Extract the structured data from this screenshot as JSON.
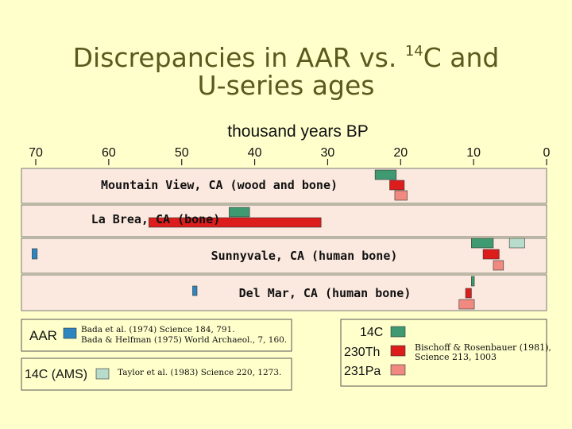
{
  "slide": {
    "title_part1": "Discrepancies in AAR vs. ",
    "title_sup": "14",
    "title_part2": "C and",
    "title_line2": "U-series ages"
  },
  "chart_data": {
    "type": "bar",
    "xlabel": "thousand years BP",
    "xlim": [
      70,
      0
    ],
    "xticks": [
      70,
      60,
      50,
      40,
      30,
      20,
      10,
      0
    ],
    "colors": {
      "AAR": "#2e86c1",
      "14C": "#3f9a72",
      "230Th": "#dd1c1c",
      "231Pa": "#f08a80",
      "14C (AMS)": "#b7dccb"
    },
    "sites": [
      {
        "label": "Mountain View, CA (wood and bone)",
        "bars": [
          {
            "method": "14C",
            "from": 23.5,
            "to": 20.6
          },
          {
            "method": "230Th",
            "from": 21.5,
            "to": 19.5
          },
          {
            "method": "231Pa",
            "from": 20.8,
            "to": 19.1
          }
        ]
      },
      {
        "label": "La Brea, CA (bone)",
        "bars": [
          {
            "method": "14C",
            "from": 43.5,
            "to": 40.7
          },
          {
            "method": "230Th",
            "from": 54.5,
            "to": 30.9
          }
        ]
      },
      {
        "label": "Sunnyvale, CA (human bone)",
        "bars": [
          {
            "method": "AAR",
            "from": 70.5,
            "to": 69.8
          },
          {
            "method": "14C",
            "from": 10.3,
            "to": 7.3
          },
          {
            "method": "14C (AMS)",
            "from": 5.1,
            "to": 3.0
          },
          {
            "method": "230Th",
            "from": 8.7,
            "to": 6.5
          },
          {
            "method": "231Pa",
            "from": 7.3,
            "to": 5.9
          }
        ]
      },
      {
        "label": "Del Mar, CA (human bone)",
        "bars": [
          {
            "method": "AAR",
            "from": 48.5,
            "to": 47.9
          },
          {
            "method": "14C",
            "from": 10.3,
            "to": 9.9
          },
          {
            "method": "230Th",
            "from": 11.1,
            "to": 10.3
          },
          {
            "method": "231Pa",
            "from": 12.0,
            "to": 9.9
          }
        ]
      }
    ]
  },
  "legend_left": {
    "aar_label": "AAR",
    "aar_ref1": "Bada et al. (1974) Science 184, 791.",
    "aar_ref2": "Bada & Helfman (1975) World Archaeol., 7, 160.",
    "ams_label": "14C (AMS)",
    "ams_ref": "Taylor et al. (1983) Science 220, 1273."
  },
  "legend_right": {
    "c14_label": "14C",
    "th230_label": "230Th",
    "pa231_label": "231Pa",
    "ref1": "Bischoff & Rosenbauer (1981),",
    "ref2": "Science 213, 1003"
  }
}
